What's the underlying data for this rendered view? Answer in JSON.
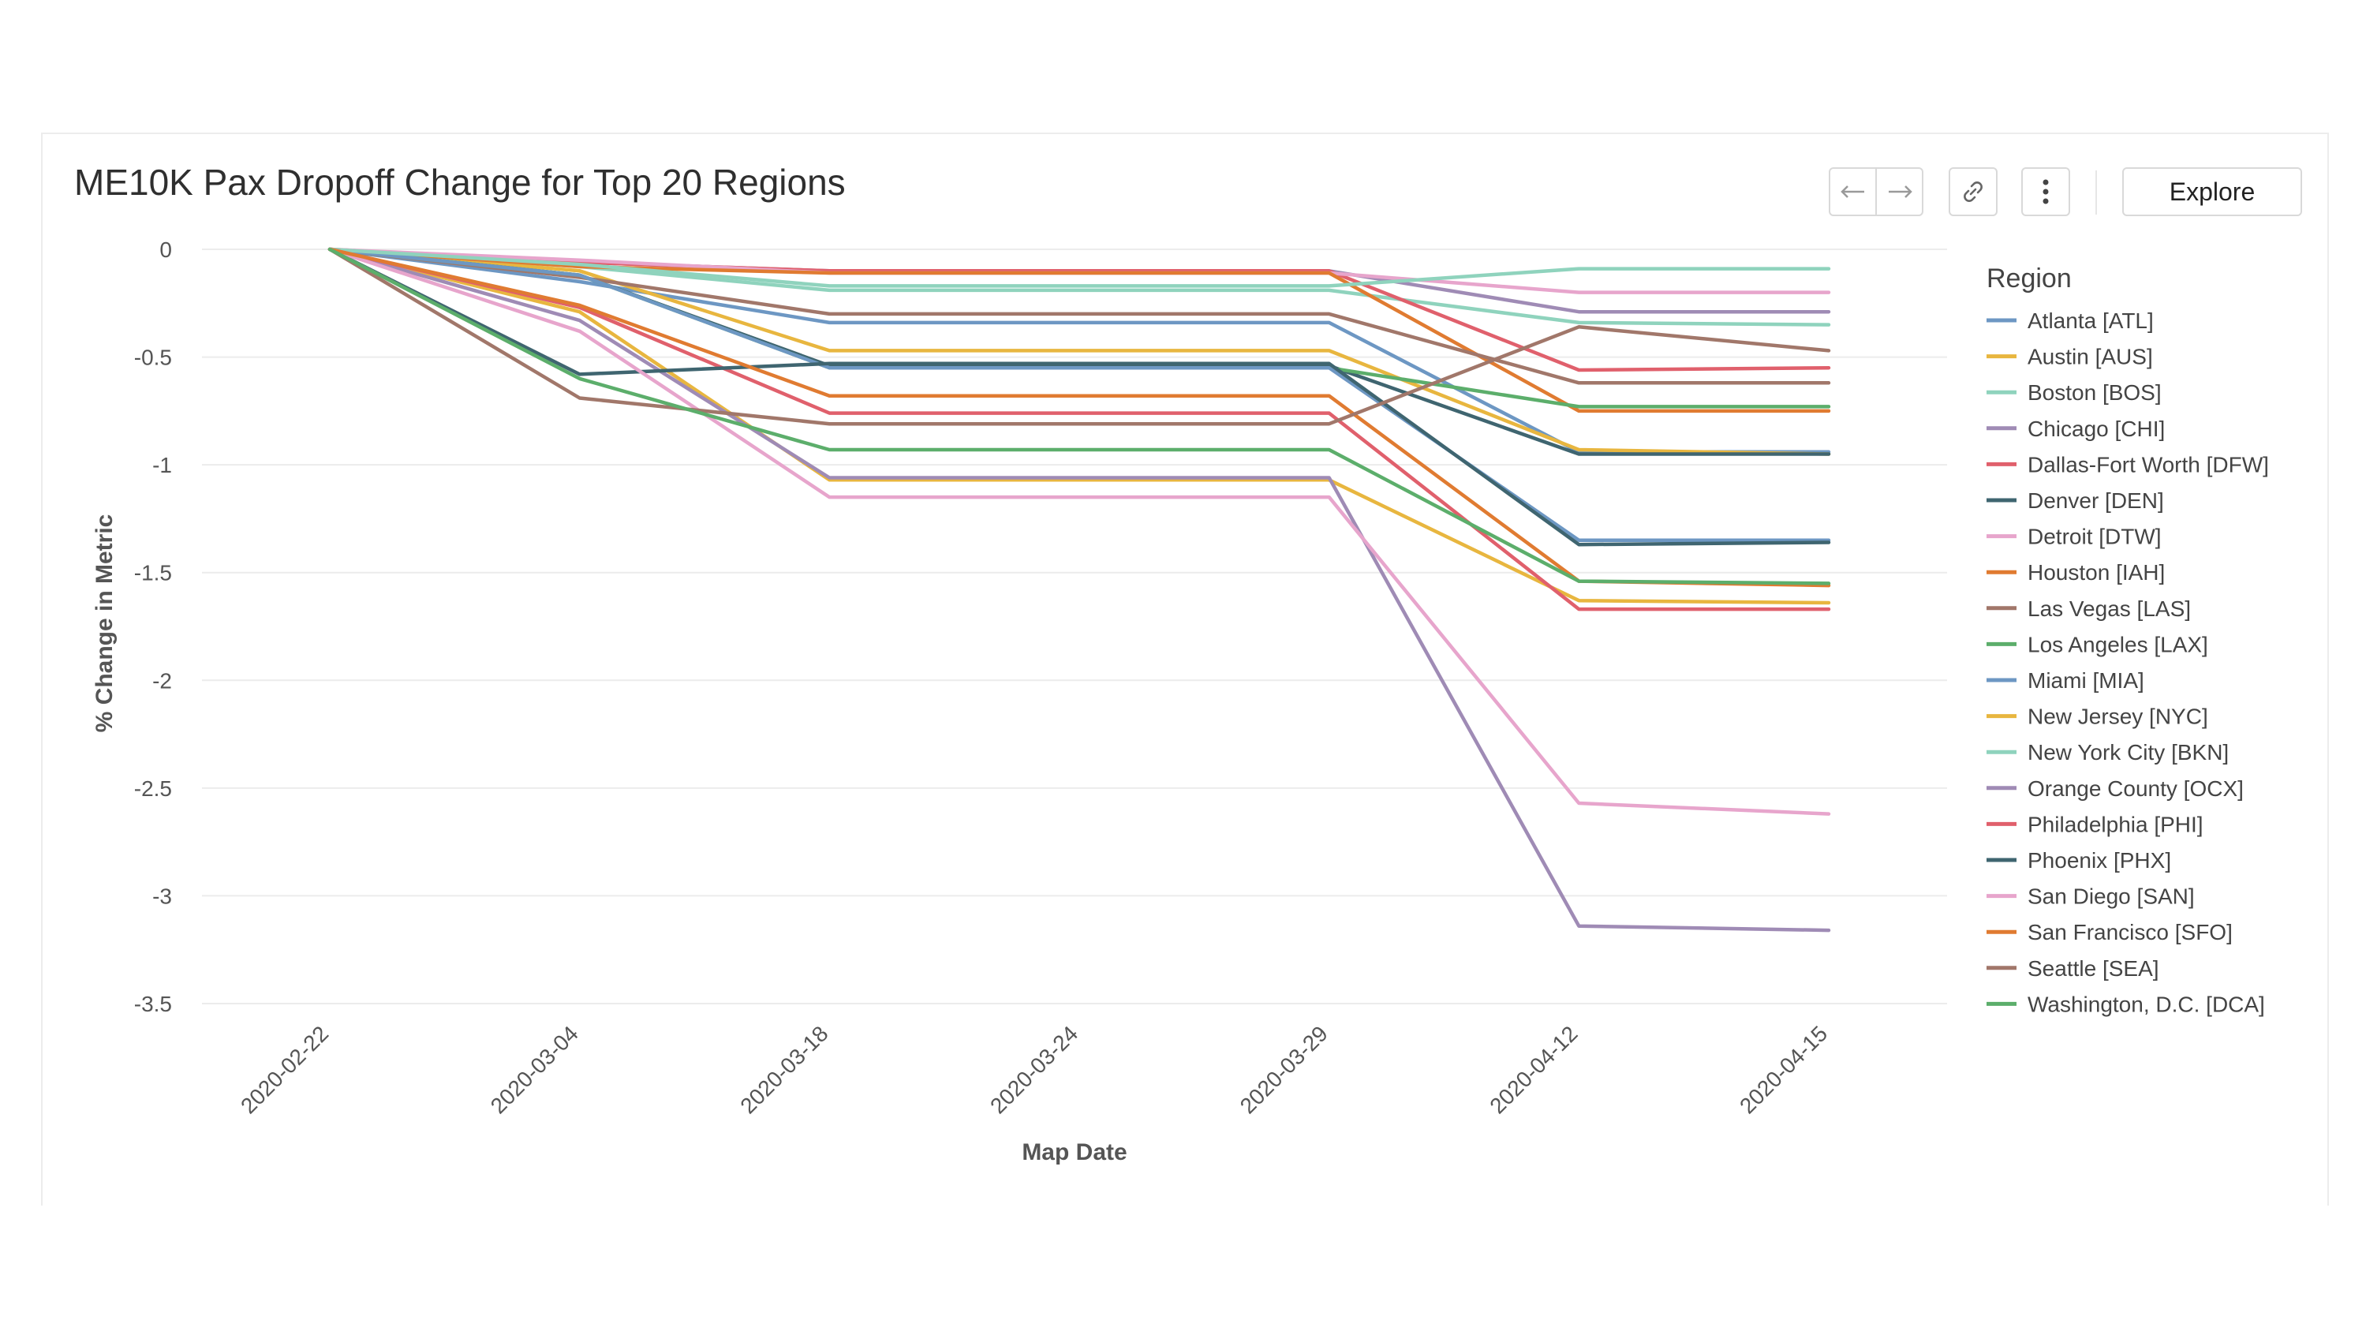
{
  "chart_title": "ME10K Pax Dropoff Change for Top 20 Regions",
  "toolbar": {
    "back_icon": "arrow-left-icon",
    "forward_icon": "arrow-right-icon",
    "link_icon": "link-icon",
    "more_icon": "vertical-dots-icon",
    "explore_label": "Explore"
  },
  "chart_data": {
    "type": "line",
    "title": "ME10K Pax Dropoff Change for Top 20 Regions",
    "xlabel": "Map Date",
    "ylabel": "% Change in Metric",
    "x": [
      "2020-02-22",
      "2020-03-04",
      "2020-03-18",
      "2020-03-24",
      "2020-03-29",
      "2020-04-12",
      "2020-04-15"
    ],
    "yticks": [
      "0",
      "-0.5",
      "-1",
      "-1.5",
      "-2",
      "-2.5",
      "-3",
      "-3.5"
    ],
    "ylim": [
      -3.5,
      0
    ],
    "grid": true,
    "legend_title": "Region",
    "legend_position": "right",
    "series": [
      {
        "name": "Atlanta [ATL]",
        "color": "#6d97c3",
        "values": [
          0,
          -0.15,
          -0.34,
          -0.34,
          -0.34,
          -0.94,
          -0.94
        ]
      },
      {
        "name": "Austin [AUS]",
        "color": "#e8b63f",
        "values": [
          0,
          -0.1,
          -0.47,
          -0.47,
          -0.47,
          -0.93,
          -0.95
        ]
      },
      {
        "name": "Boston [BOS]",
        "color": "#8fd3bd",
        "values": [
          0,
          -0.08,
          -0.19,
          -0.19,
          -0.19,
          -0.34,
          -0.35
        ]
      },
      {
        "name": "Chicago [CHI]",
        "color": "#9f8bb5",
        "values": [
          0,
          -0.06,
          -0.1,
          -0.1,
          -0.1,
          -0.29,
          -0.29
        ]
      },
      {
        "name": "Dallas-Fort Worth [DFW]",
        "color": "#e0606c",
        "values": [
          0,
          -0.06,
          -0.1,
          -0.1,
          -0.1,
          -0.56,
          -0.55
        ]
      },
      {
        "name": "Denver [DEN]",
        "color": "#3f6570",
        "values": [
          0,
          -0.12,
          -0.54,
          -0.54,
          -0.54,
          -0.95,
          -0.95
        ]
      },
      {
        "name": "Detroit [DTW]",
        "color": "#e7a5cc",
        "values": [
          0,
          -0.05,
          -0.11,
          -0.11,
          -0.11,
          -0.2,
          -0.2
        ]
      },
      {
        "name": "Houston [IAH]",
        "color": "#e07b31",
        "values": [
          0,
          -0.08,
          -0.11,
          -0.11,
          -0.11,
          -0.75,
          -0.75
        ]
      },
      {
        "name": "Las Vegas [LAS]",
        "color": "#a1776a",
        "values": [
          0,
          -0.13,
          -0.3,
          -0.3,
          -0.3,
          -0.62,
          -0.62
        ]
      },
      {
        "name": "Los Angeles [LAX]",
        "color": "#5cae6b",
        "values": [
          0,
          -0.12,
          -0.55,
          -0.55,
          -0.55,
          -0.73,
          -0.73
        ]
      },
      {
        "name": "Miami [MIA]",
        "color": "#6d97c3",
        "values": [
          0,
          -0.12,
          -0.55,
          -0.55,
          -0.55,
          -1.35,
          -1.35
        ]
      },
      {
        "name": "New Jersey [NYC]",
        "color": "#e8b63f",
        "values": [
          0,
          -0.29,
          -1.07,
          -1.07,
          -1.07,
          -1.63,
          -1.64
        ]
      },
      {
        "name": "New York City [BKN]",
        "color": "#8fd3bd",
        "values": [
          0,
          -0.07,
          -0.17,
          -0.17,
          -0.17,
          -0.09,
          -0.09
        ]
      },
      {
        "name": "Orange County [OCX]",
        "color": "#9f8bb5",
        "values": [
          0,
          -0.33,
          -1.06,
          -1.06,
          -1.06,
          -3.14,
          -3.16
        ]
      },
      {
        "name": "Philadelphia [PHI]",
        "color": "#e0606c",
        "values": [
          0,
          -0.27,
          -0.76,
          -0.76,
          -0.76,
          -1.67,
          -1.67
        ]
      },
      {
        "name": "Phoenix [PHX]",
        "color": "#3f6570",
        "values": [
          0,
          -0.58,
          -0.53,
          -0.53,
          -0.53,
          -1.37,
          -1.36
        ]
      },
      {
        "name": "San Diego [SAN]",
        "color": "#e7a5cc",
        "values": [
          0,
          -0.38,
          -1.15,
          -1.15,
          -1.15,
          -2.57,
          -2.62
        ]
      },
      {
        "name": "San Francisco [SFO]",
        "color": "#e07b31",
        "values": [
          0,
          -0.26,
          -0.68,
          -0.68,
          -0.68,
          -1.54,
          -1.56
        ]
      },
      {
        "name": "Seattle [SEA]",
        "color": "#a1776a",
        "values": [
          0,
          -0.69,
          -0.81,
          -0.81,
          -0.81,
          -0.36,
          -0.47
        ]
      },
      {
        "name": "Washington, D.C. [DCA]",
        "color": "#5cae6b",
        "values": [
          0,
          -0.6,
          -0.93,
          -0.93,
          -0.93,
          -1.54,
          -1.55
        ]
      }
    ]
  }
}
